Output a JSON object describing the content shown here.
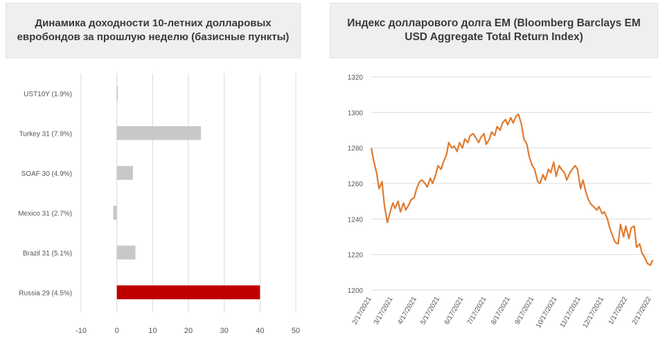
{
  "chart_data": [
    {
      "type": "bar",
      "orientation": "horizontal",
      "title": "Динамика доходности 10-летних долларовых евробондов за прошлую неделю (базисные пункты)",
      "categories": [
        "UST10Y (1.9%)",
        "Turkey 31 (7.9%)",
        "SOAF 30 (4.9%)",
        "Mexico 31 (2.7%)",
        "Brazil 31 (5.1%)",
        "Russia 29 (4.5%)"
      ],
      "values": [
        0.3,
        23.5,
        4.5,
        -1.0,
        5.2,
        40.0
      ],
      "xlim": [
        -10,
        50
      ],
      "xticks": [
        "-10",
        "0",
        "10",
        "20",
        "30",
        "40",
        "50"
      ],
      "grid": true,
      "colors": [
        "#c8c8c8",
        "#c8c8c8",
        "#c8c8c8",
        "#c8c8c8",
        "#c8c8c8",
        "#c00000"
      ]
    },
    {
      "type": "line",
      "title": "Индекс долларового долга EM (Bloomberg Barclays EM USD Aggregate Total Return Index)",
      "ylim": [
        1200,
        1320
      ],
      "yticks": [
        "1200",
        "1220",
        "1240",
        "1260",
        "1280",
        "1300",
        "1320"
      ],
      "xticks": [
        "2/17/2021",
        "3/17/2021",
        "4/17/2021",
        "5/17/2021",
        "6/17/2021",
        "7/17/2021",
        "8/17/2021",
        "9/17/2021",
        "10/17/2021",
        "11/17/2021",
        "12/17/2021",
        "1/17/2022",
        "2/17/2022"
      ],
      "grid": true,
      "color": "#e07b2f",
      "series": [
        {
          "x": [
            "2021-02-17",
            "2021-02-20",
            "2021-02-24",
            "2021-02-27",
            "2021-03-03",
            "2021-03-06",
            "2021-03-10",
            "2021-03-13",
            "2021-03-17",
            "2021-03-20",
            "2021-03-24",
            "2021-03-27",
            "2021-03-31",
            "2021-04-03",
            "2021-04-07",
            "2021-04-10",
            "2021-04-14",
            "2021-04-17",
            "2021-04-21",
            "2021-04-24",
            "2021-04-28",
            "2021-05-01",
            "2021-05-05",
            "2021-05-08",
            "2021-05-12",
            "2021-05-15",
            "2021-05-19",
            "2021-05-22",
            "2021-05-26",
            "2021-05-29",
            "2021-06-02",
            "2021-06-05",
            "2021-06-09",
            "2021-06-12",
            "2021-06-16",
            "2021-06-19",
            "2021-06-23",
            "2021-06-26",
            "2021-06-30",
            "2021-07-03",
            "2021-07-07",
            "2021-07-10",
            "2021-07-14",
            "2021-07-17",
            "2021-07-21",
            "2021-07-24",
            "2021-07-28",
            "2021-07-31",
            "2021-08-04",
            "2021-08-07",
            "2021-08-11",
            "2021-08-14",
            "2021-08-18",
            "2021-08-21",
            "2021-08-25",
            "2021-08-28",
            "2021-09-01",
            "2021-09-04",
            "2021-09-08",
            "2021-09-11",
            "2021-09-15",
            "2021-09-18",
            "2021-09-22",
            "2021-09-25",
            "2021-09-29",
            "2021-10-02",
            "2021-10-06",
            "2021-10-09",
            "2021-10-13",
            "2021-10-16",
            "2021-10-20",
            "2021-10-23",
            "2021-10-27",
            "2021-10-30",
            "2021-11-03",
            "2021-11-06",
            "2021-11-10",
            "2021-11-13",
            "2021-11-17",
            "2021-11-20",
            "2021-11-24",
            "2021-11-27",
            "2021-12-01",
            "2021-12-04",
            "2021-12-08",
            "2021-12-11",
            "2021-12-15",
            "2021-12-18",
            "2021-12-22",
            "2021-12-25",
            "2021-12-29",
            "2022-01-01",
            "2022-01-05",
            "2022-01-08",
            "2022-01-12",
            "2022-01-15",
            "2022-01-19",
            "2022-01-22",
            "2022-01-26",
            "2022-01-29",
            "2022-02-02",
            "2022-02-05",
            "2022-02-09",
            "2022-02-12",
            "2022-02-16",
            "2022-02-19"
          ],
          "values": [
            1280,
            1273,
            1266,
            1257,
            1261,
            1248,
            1238,
            1243,
            1249,
            1246,
            1250,
            1244,
            1249,
            1245,
            1248,
            1251,
            1252,
            1257,
            1261,
            1262,
            1260,
            1258,
            1263,
            1260,
            1265,
            1270,
            1268,
            1272,
            1276,
            1283,
            1280,
            1281,
            1278,
            1283,
            1280,
            1285,
            1283,
            1287,
            1288,
            1286,
            1283,
            1286,
            1288,
            1282,
            1285,
            1289,
            1287,
            1292,
            1290,
            1294,
            1296,
            1293,
            1297,
            1294,
            1298,
            1299,
            1293,
            1285,
            1282,
            1275,
            1270,
            1268,
            1261,
            1260,
            1265,
            1262,
            1268,
            1266,
            1272,
            1264,
            1270,
            1268,
            1266,
            1262,
            1266,
            1268,
            1270,
            1268,
            1257,
            1262,
            1255,
            1251,
            1248,
            1247,
            1245,
            1247,
            1243,
            1244,
            1240,
            1235,
            1230,
            1227,
            1226,
            1237,
            1230,
            1236,
            1229,
            1235,
            1236,
            1224,
            1226,
            1221,
            1218,
            1215,
            1214,
            1217
          ]
        }
      ]
    }
  ]
}
